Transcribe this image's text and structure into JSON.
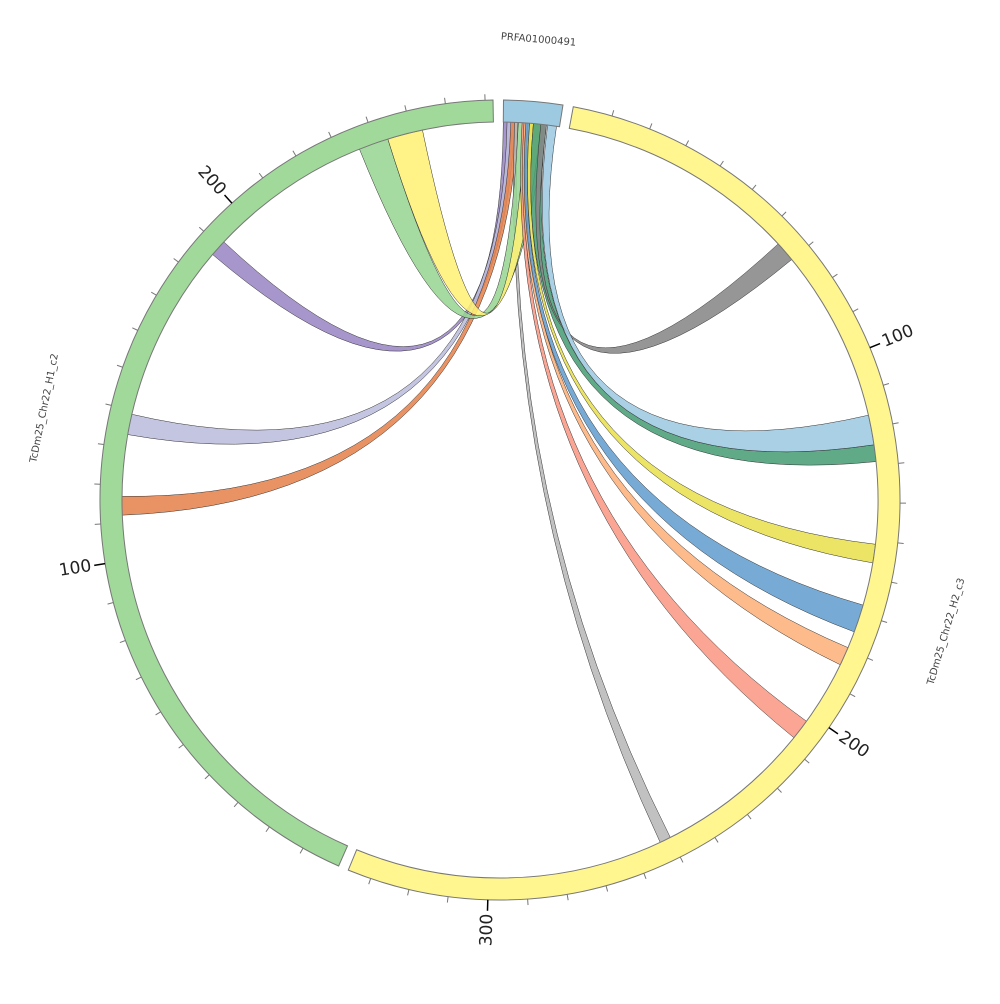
{
  "chart_data": {
    "type": "chord",
    "segments": [
      {
        "name": "PRFA01000491",
        "length": 15,
        "color": "#9ecae1"
      },
      {
        "name": "TcDm25_Chr22_H2_c3",
        "length": 336,
        "color": "#fff68f",
        "ticks": [
          100,
          200,
          300
        ]
      },
      {
        "name": "TcDm25_Chr22_H1_c2",
        "length": 272,
        "color": "#a1d99b",
        "ticks": [
          100,
          200
        ]
      }
    ],
    "tick_step": 10,
    "links": [
      {
        "color": "#9b87c4",
        "source": {
          "segment": 0,
          "start": 0,
          "end": 2.5
        },
        "target": {
          "segment": 2,
          "start": 187,
          "end": 191.5
        }
      },
      {
        "color": "#bcbddc",
        "source": {
          "segment": 0,
          "start": 1,
          "end": 3
        },
        "target": {
          "segment": 2,
          "start": 133.5,
          "end": 139
        }
      },
      {
        "color": "#e6844f",
        "source": {
          "segment": 0,
          "start": 2,
          "end": 3.9
        },
        "target": {
          "segment": 2,
          "start": 112,
          "end": 117
        }
      },
      {
        "color": "#b8b8b8",
        "source": {
          "segment": 0,
          "start": 3,
          "end": 3.9
        },
        "target": {
          "segment": 1,
          "start": 250,
          "end": 253
        }
      },
      {
        "color": "#98d594",
        "source": {
          "segment": 0,
          "start": 4,
          "end": 11
        },
        "target": {
          "segment": 2,
          "start": 235.5,
          "end": 243.5
        }
      },
      {
        "color": "#fff176",
        "source": {
          "segment": 0,
          "start": 6,
          "end": 10
        },
        "target": {
          "segment": 2,
          "start": 243.5,
          "end": 253
        }
      },
      {
        "color": "#fb9a85",
        "source": {
          "segment": 0,
          "start": 5,
          "end": 6
        },
        "target": {
          "segment": 1,
          "start": 202,
          "end": 207.5
        }
      },
      {
        "color": "#fdb07a",
        "source": {
          "segment": 0,
          "start": 5.5,
          "end": 6.5
        },
        "target": {
          "segment": 1,
          "start": 179.5,
          "end": 184.5
        }
      },
      {
        "color": "#649fd0",
        "source": {
          "segment": 0,
          "start": 6,
          "end": 7
        },
        "target": {
          "segment": 1,
          "start": 167.5,
          "end": 175
        }
      },
      {
        "color": "#e8e050",
        "source": {
          "segment": 0,
          "start": 7,
          "end": 8
        },
        "target": {
          "segment": 1,
          "start": 151,
          "end": 156
        }
      },
      {
        "color": "#4a9e78",
        "source": {
          "segment": 0,
          "start": 8,
          "end": 11.5
        },
        "target": {
          "segment": 1,
          "start": 124.5,
          "end": 129
        }
      },
      {
        "color": "#888888",
        "source": {
          "segment": 0,
          "start": 10,
          "end": 11.5
        },
        "target": {
          "segment": 1,
          "start": 64.5,
          "end": 70
        }
      },
      {
        "color": "#9ecae1",
        "source": {
          "segment": 0,
          "start": 11.8,
          "end": 14.2
        },
        "target": {
          "segment": 1,
          "start": 116.5,
          "end": 124.5
        }
      }
    ]
  }
}
